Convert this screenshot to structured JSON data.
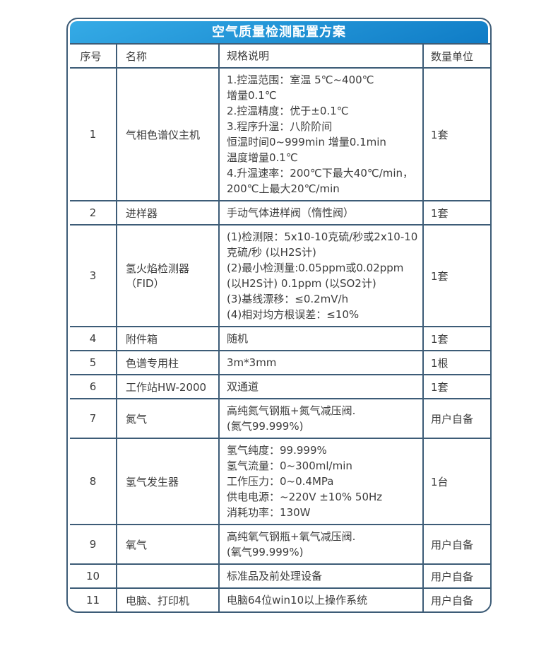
{
  "title": "空气质量检测配置方案",
  "colors": {
    "header_gradient_top": "#35abe6",
    "header_gradient_bottom": "#0f7cc6",
    "table_border": "#3d5c77",
    "title_text": "#ffffff",
    "body_text": "#3c3c3c"
  },
  "table": {
    "headers": [
      "序号",
      "名称",
      "规格说明",
      "数量单位"
    ],
    "rows": [
      {
        "no": "1",
        "name": "气相色谱仪主机",
        "spec": "1.控温范围：室温 5℃~400℃\n增量0.1℃\n2.控温精度：优于±0.1℃\n3.程序升温：八阶阶间\n恒温时间0~999min 增量0.1min\n温度增量0.1℃\n4.升温速率：200℃下最大40℃/min，\n200℃上最大20℃/min",
        "qty": "1套"
      },
      {
        "no": "2",
        "name": "进样器",
        "spec": "手动气体进样阀（惰性阀）",
        "qty": "1套"
      },
      {
        "no": "3",
        "name": "氢火焰检测器（FID）",
        "spec": "(1)检测限：5x10-10克硫/秒或2x10-10\n克硫/秒 (以H2S计)\n(2)最小检测量:0.05ppm或0.02ppm\n(以H2S计) 0.1ppm (以SO2计)\n(3)基线漂移：≤0.2mV/h\n(4)相对均方根误差：≤10%",
        "qty": "1套"
      },
      {
        "no": "4",
        "name": "附件箱",
        "spec": "随机",
        "qty": "1套"
      },
      {
        "no": "5",
        "name": "色谱专用柱",
        "spec": "3m*3mm",
        "qty": "1根"
      },
      {
        "no": "6",
        "name": "工作站HW-2000",
        "spec": "双通道",
        "qty": "1套"
      },
      {
        "no": "7",
        "name": "氮气",
        "spec": "高纯氮气钢瓶+氮气减压阀.\n(氮气99.999%)",
        "qty": "用户自备"
      },
      {
        "no": "8",
        "name": "氢气发生器",
        "spec": "氢气纯度：99.999%\n氢气流量：0~300ml/min\n工作压力：0~0.4MPa\n供电电源：~220V ±10% 50Hz\n消耗功率：130W",
        "qty": "1台"
      },
      {
        "no": "9",
        "name": "氧气",
        "spec": "高纯氧气钢瓶+氧气减压阀.\n(氧气99.999%)",
        "qty": "用户自备"
      },
      {
        "no": "10",
        "name": "",
        "spec": "标准品及前处理设备",
        "qty": "用户自备"
      },
      {
        "no": "11",
        "name": "电脑、打印机",
        "spec": "电脑64位win10以上操作系统",
        "qty": "用户自备"
      }
    ]
  }
}
